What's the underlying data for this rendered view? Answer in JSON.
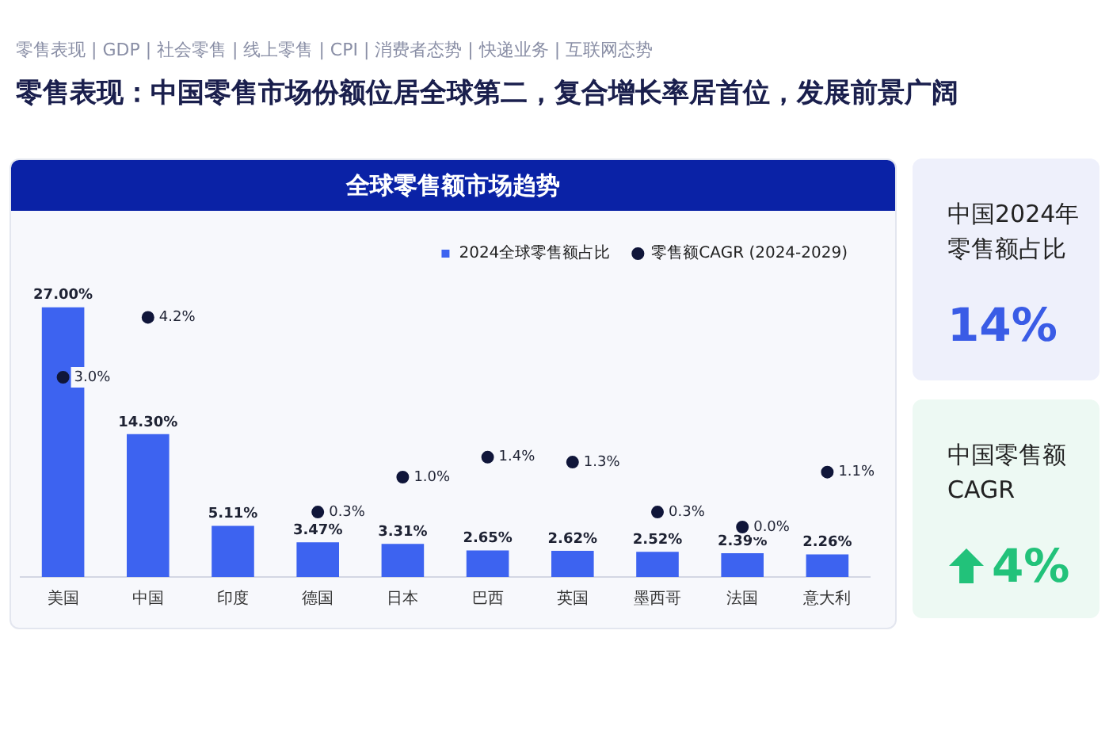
{
  "chart_data": [
    {
      "type": "bar",
      "title": "全球零售额市场趋势",
      "annotations": [
        "零售表现 | GDP | 社会零售 | 线上零售 | CPI | 消费者态势 | 快递业务 | 互联网态势",
        "零售表现：中国零售市场份额位居全球第二，复合增长率居首位，发展前景广阔"
      ],
      "categories": [
        "美国",
        "中国",
        "印度",
        "德国",
        "日本",
        "巴西",
        "英国",
        "墨西哥",
        "法国",
        "意大利"
      ],
      "series": [
        {
          "name": "2024全球零售额占比",
          "type": "bar",
          "color": "#3d63f0",
          "values": [
            27.0,
            14.3,
            5.11,
            3.47,
            3.31,
            2.65,
            2.62,
            2.52,
            2.39,
            2.26
          ],
          "value_labels": [
            "27.00%",
            "14.30%",
            "5.11%",
            "3.47%",
            "3.31%",
            "2.65%",
            "2.62%",
            "2.52%",
            "2.39%",
            "2.26%"
          ]
        },
        {
          "name": "零售额CAGR (2024-2029)",
          "type": "scatter",
          "axis": "y2",
          "color": "#10163a",
          "values": [
            3.0,
            4.2,
            null,
            0.3,
            1.0,
            1.4,
            1.3,
            0.3,
            0.0,
            1.1
          ],
          "value_labels": [
            "3.0%",
            "4.2%",
            null,
            "0.3%",
            "1.0%",
            "1.4%",
            "1.3%",
            "0.3%",
            "0.0%",
            "1.1%"
          ]
        }
      ],
      "tick_labels": "x",
      "legend": "top right",
      "marker": "circle"
    },
    {
      "type": "other",
      "annotations": [
        "中国2024年零售额占比",
        "14%",
        "中国零售额CAGR",
        "4%"
      ]
    }
  ]
}
